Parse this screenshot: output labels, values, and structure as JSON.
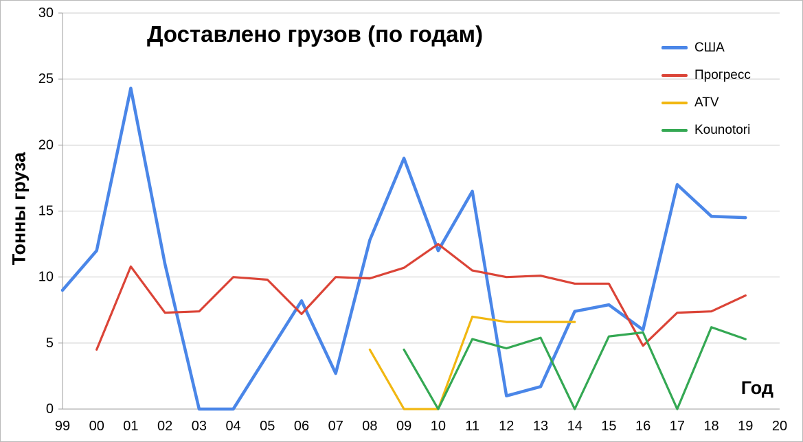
{
  "chart_data": {
    "type": "line",
    "title": "Доставлено грузов (по годам)",
    "ylabel": "Тонны груза",
    "xlabel": "Год",
    "categories": [
      "99",
      "00",
      "01",
      "02",
      "03",
      "04",
      "05",
      "06",
      "07",
      "08",
      "09",
      "10",
      "11",
      "12",
      "13",
      "14",
      "15",
      "16",
      "17",
      "18",
      "19",
      "20"
    ],
    "ylim": [
      0,
      30
    ],
    "y_ticks": [
      0,
      5,
      10,
      15,
      20,
      25,
      30
    ],
    "grid": true,
    "legend_position": "top-right",
    "colors": {
      "usa": "#4a86e8",
      "progress": "#db4437",
      "atv": "#f1b711",
      "kounotori": "#34a853",
      "gridline": "#cccccc",
      "axis": "#9e9e9e"
    },
    "series": [
      {
        "name": "США",
        "color": "#4a86e8",
        "width": 4.5,
        "values": [
          9,
          12,
          24.3,
          11,
          0,
          0,
          4.1,
          8.2,
          2.7,
          12.8,
          19,
          12,
          16.5,
          1,
          1.7,
          7.4,
          7.9,
          6,
          17,
          14.6,
          14.5,
          null
        ]
      },
      {
        "name": "Прогресс",
        "color": "#db4437",
        "width": 3.2,
        "values": [
          null,
          4.5,
          10.8,
          7.3,
          7.4,
          10,
          9.8,
          7.2,
          10,
          9.9,
          10.7,
          12.5,
          10.5,
          10,
          10.1,
          9.5,
          9.5,
          4.8,
          7.3,
          7.4,
          8.6,
          null
        ]
      },
      {
        "name": "ATV",
        "color": "#f1b711",
        "width": 3.2,
        "values": [
          null,
          null,
          null,
          null,
          null,
          null,
          null,
          null,
          null,
          4.5,
          0,
          0,
          7,
          6.6,
          6.6,
          6.6,
          null,
          null,
          null,
          null,
          null,
          null
        ]
      },
      {
        "name": "Kounotori",
        "color": "#34a853",
        "width": 3.2,
        "values": [
          null,
          null,
          null,
          null,
          null,
          null,
          null,
          null,
          null,
          null,
          4.5,
          0,
          5.3,
          4.6,
          5.4,
          0,
          5.5,
          5.8,
          0,
          6.2,
          5.3,
          null
        ]
      }
    ]
  }
}
